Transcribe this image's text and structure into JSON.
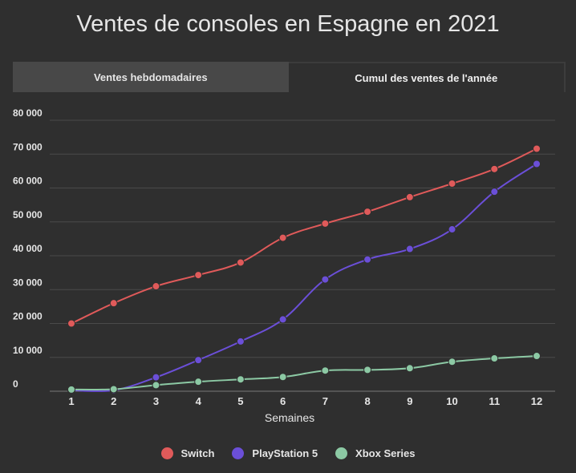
{
  "tabs": {
    "weekly_label": "Ventes hebdomadaires",
    "cumulative_label": "Cumul des ventes de l'année"
  },
  "chart_data": {
    "type": "line",
    "title": "Ventes de consoles en Espagne en 2021",
    "xlabel": "Semaines",
    "ylabel": "",
    "x": [
      1,
      2,
      3,
      4,
      5,
      6,
      7,
      8,
      9,
      10,
      11,
      12
    ],
    "ylim": [
      0,
      80000
    ],
    "yticks": [
      0,
      10000,
      20000,
      30000,
      40000,
      50000,
      60000,
      70000,
      80000
    ],
    "ytick_labels": [
      "0",
      "10 000",
      "20 000",
      "30 000",
      "40 000",
      "50 000",
      "60 000",
      "70 000",
      "80 000"
    ],
    "grid": true,
    "legend": "bottom",
    "series": [
      {
        "name": "Switch",
        "color": "#e05a5a",
        "values": [
          20000,
          26000,
          31000,
          34300,
          38000,
          45300,
          49500,
          53000,
          57300,
          61300,
          65600,
          71600
        ]
      },
      {
        "name": "PlayStation 5",
        "color": "#6b4fd8",
        "values": [
          300,
          300,
          4100,
          9200,
          14700,
          21200,
          33000,
          38900,
          42000,
          47800,
          58900,
          67100
        ]
      },
      {
        "name": "Xbox Series",
        "color": "#8cc9a4",
        "values": [
          500,
          600,
          1800,
          2800,
          3500,
          4200,
          6100,
          6300,
          6800,
          8700,
          9700,
          10400
        ]
      }
    ]
  }
}
